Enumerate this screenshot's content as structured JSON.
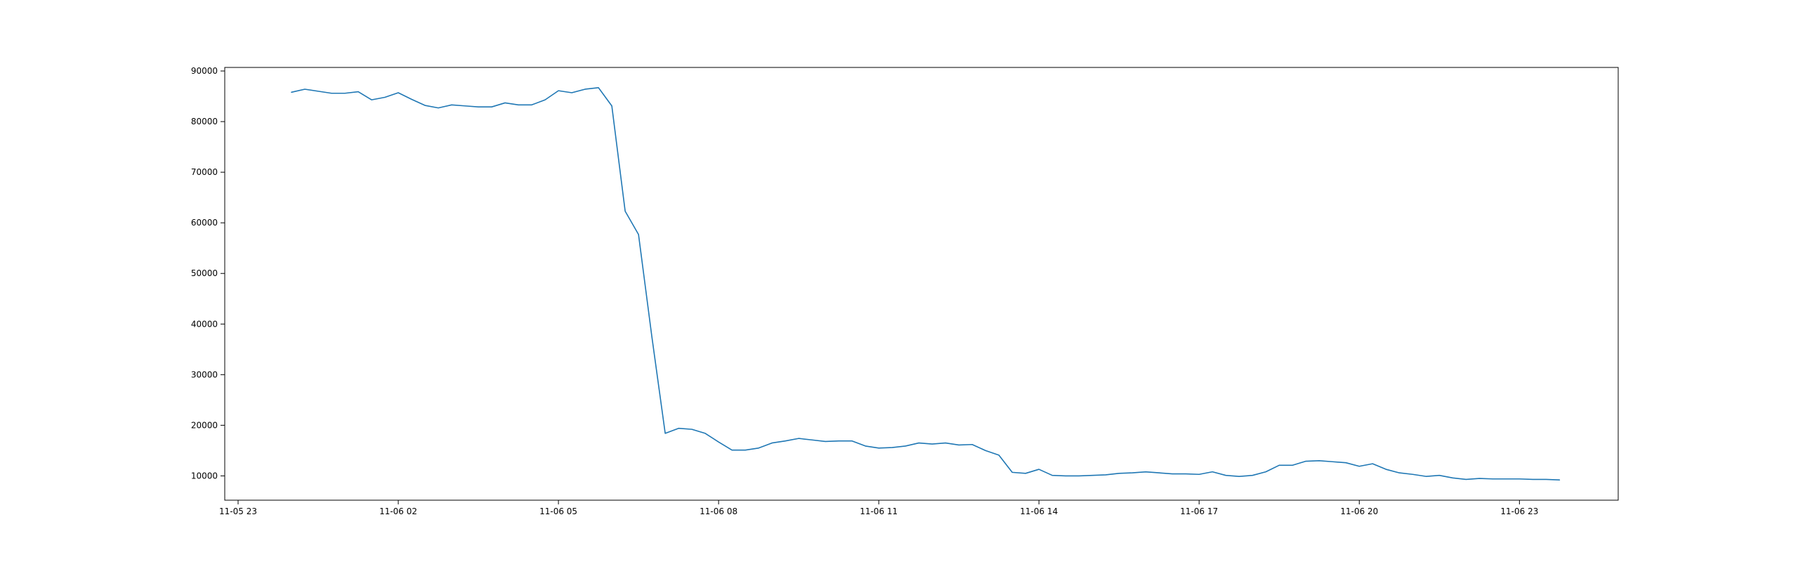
{
  "chart_data": {
    "type": "line",
    "title": "",
    "xlabel": "",
    "ylabel": "",
    "x_unit": "hour",
    "x_tick_labels": [
      "11-05 23",
      "11-06 02",
      "11-06 05",
      "11-06 08",
      "11-06 11",
      "11-06 14",
      "11-06 17",
      "11-06 20",
      "11-06 23"
    ],
    "x_tick_values": [
      0,
      3,
      6,
      9,
      12,
      15,
      18,
      21,
      24
    ],
    "xlim": [
      -0.25,
      25.85
    ],
    "ylim": [
      5200,
      90700
    ],
    "y_ticks": [
      10000,
      20000,
      30000,
      40000,
      50000,
      60000,
      70000,
      80000,
      90000
    ],
    "y_tick_labels": [
      "10000",
      "20000",
      "30000",
      "40000",
      "50000",
      "60000",
      "70000",
      "80000",
      "90000"
    ],
    "grid": false,
    "series": [
      {
        "color": "#1f77b4",
        "x": [
          1.0,
          1.25,
          1.5,
          1.75,
          2.0,
          2.25,
          2.5,
          2.75,
          3.0,
          3.25,
          3.5,
          3.75,
          4.0,
          4.25,
          4.5,
          4.75,
          5.0,
          5.25,
          5.5,
          5.75,
          6.0,
          6.25,
          6.5,
          6.75,
          7.0,
          7.25,
          7.5,
          7.75,
          8.0,
          8.25,
          8.5,
          8.75,
          9.0,
          9.25,
          9.5,
          9.75,
          10.0,
          10.25,
          10.5,
          10.75,
          11.0,
          11.25,
          11.5,
          11.75,
          12.0,
          12.25,
          12.5,
          12.75,
          13.0,
          13.25,
          13.5,
          13.75,
          14.0,
          14.25,
          14.5,
          14.75,
          15.0,
          15.25,
          15.5,
          15.75,
          16.0,
          16.25,
          16.5,
          16.75,
          17.0,
          17.25,
          17.5,
          17.75,
          18.0,
          18.25,
          18.5,
          18.75,
          19.0,
          19.25,
          19.5,
          19.75,
          20.0,
          20.25,
          20.5,
          20.75,
          21.0,
          21.25,
          21.5,
          21.75,
          22.0,
          22.25,
          22.5,
          22.75,
          23.0,
          23.25,
          23.5,
          23.75,
          24.0,
          24.25,
          24.5,
          24.75
        ],
        "y": [
          85800,
          86400,
          86000,
          85600,
          85600,
          85900,
          84300,
          84800,
          85700,
          84400,
          83200,
          82700,
          83300,
          83100,
          82900,
          82900,
          83700,
          83300,
          83300,
          84300,
          86100,
          85700,
          86400,
          86700,
          83100,
          62300,
          57700,
          37500,
          18400,
          19400,
          19200,
          18400,
          16700,
          15100,
          15100,
          15500,
          16500,
          16900,
          17400,
          17100,
          16800,
          16900,
          16900,
          15900,
          15500,
          15600,
          15900,
          16500,
          16300,
          16500,
          16100,
          16200,
          15000,
          14100,
          10700,
          10500,
          11300,
          10100,
          10000,
          10000,
          10100,
          10200,
          10500,
          10600,
          10800,
          10600,
          10400,
          10400,
          10300,
          10800,
          10100,
          9900,
          10100,
          10800,
          12100,
          12100,
          12900,
          13000,
          12800,
          12600,
          11900,
          12400,
          11300,
          10600,
          10300,
          9900,
          10100,
          9600,
          9300,
          9500,
          9400,
          9400,
          9400,
          9300,
          9300,
          9200
        ]
      }
    ]
  }
}
